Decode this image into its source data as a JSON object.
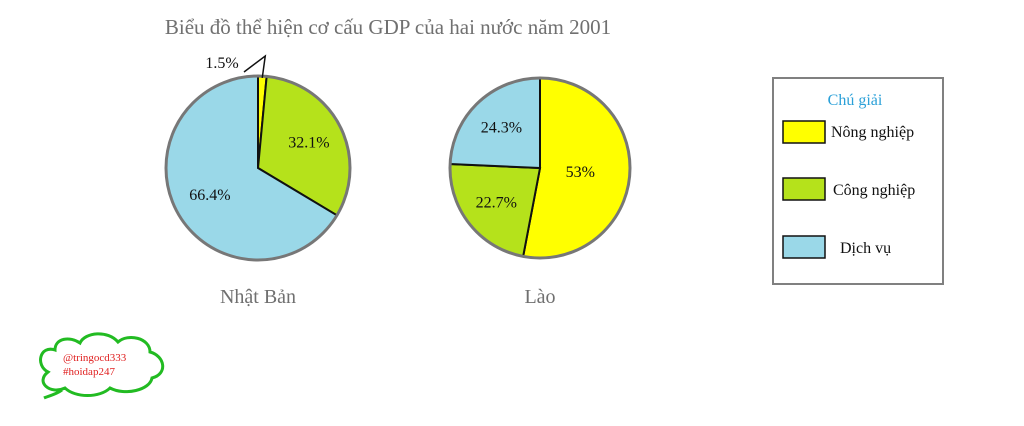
{
  "chart_data": {
    "type": "pie",
    "title": "Biểu đồ thể hiện cơ cấu GDP của hai nước năm 2001",
    "categories": [
      "Nông nghiệp",
      "Công nghiệp",
      "Dịch vụ"
    ],
    "colors": {
      "Nông nghiệp": "#ffff00",
      "Công nghiệp": "#b5e21b",
      "Dịch vụ": "#9ad8e8"
    },
    "series": [
      {
        "name": "Nhật Bản",
        "values": [
          1.5,
          32.1,
          66.4
        ],
        "labels": [
          "1.5%",
          "32.1%",
          "66.4%"
        ]
      },
      {
        "name": "Lào",
        "values": [
          53,
          22.7,
          24.3
        ],
        "labels": [
          "53%",
          "22.7%",
          "24.3%"
        ]
      }
    ],
    "legend": {
      "title": "Chú giải",
      "position": "right"
    }
  },
  "watermark": {
    "line1": "@tringocd333",
    "line2": "#hoidap247",
    "color": "#e02020",
    "cloud_color": "#22bb22"
  }
}
